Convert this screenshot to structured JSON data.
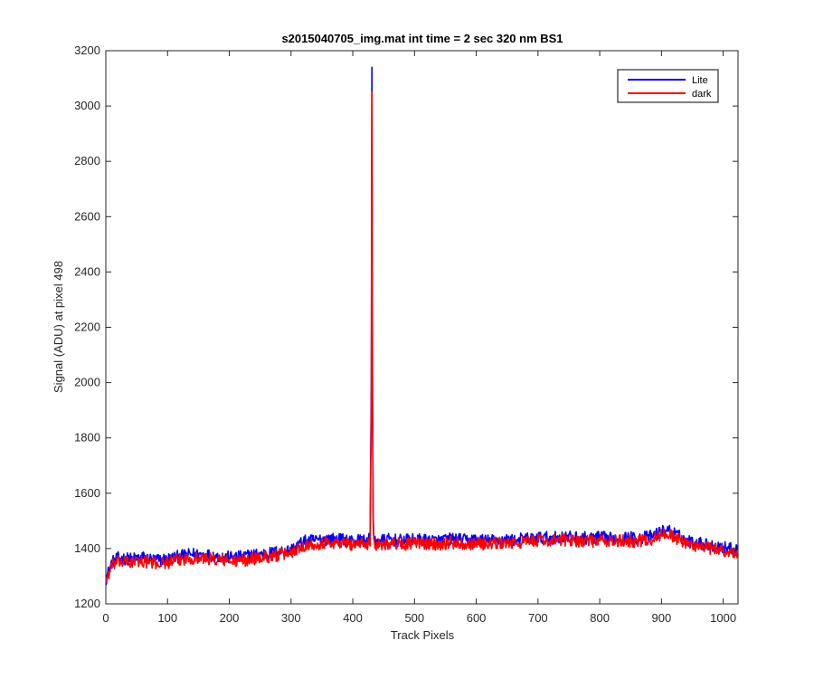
{
  "chart_data": {
    "type": "line",
    "title": "s2015040705_img.mat int time = 2 sec  320 nm BS1",
    "xlabel": "Track Pixels",
    "ylabel": "Signal (ADU) at pixel 498",
    "xlim": [
      0,
      1024
    ],
    "ylim": [
      1200,
      3200
    ],
    "xticks": [
      0,
      100,
      200,
      300,
      400,
      500,
      600,
      700,
      800,
      900,
      1000
    ],
    "yticks": [
      1200,
      1400,
      1600,
      1800,
      2000,
      2200,
      2400,
      2600,
      2800,
      3000,
      3200
    ],
    "grid": false,
    "legend_position": "top-right",
    "series": [
      {
        "name": "Lite",
        "color": "#0000ff",
        "x": [
          0,
          5,
          10,
          20,
          40,
          60,
          80,
          100,
          120,
          140,
          160,
          180,
          200,
          220,
          240,
          260,
          280,
          300,
          310,
          320,
          340,
          360,
          380,
          400,
          410,
          420,
          428,
          430,
          431,
          432,
          433,
          434,
          436,
          440,
          450,
          460,
          480,
          500,
          520,
          540,
          560,
          580,
          600,
          620,
          640,
          660,
          680,
          700,
          720,
          740,
          760,
          780,
          800,
          820,
          840,
          860,
          880,
          900,
          910,
          920,
          940,
          960,
          980,
          1000,
          1010,
          1024
        ],
        "y": [
          1290,
          1320,
          1350,
          1365,
          1362,
          1368,
          1358,
          1362,
          1372,
          1380,
          1378,
          1372,
          1368,
          1370,
          1378,
          1382,
          1388,
          1395,
          1410,
          1425,
          1430,
          1435,
          1432,
          1428,
          1430,
          1428,
          1432,
          1990,
          3140,
          1960,
          1520,
          1450,
          1425,
          1428,
          1430,
          1432,
          1428,
          1432,
          1430,
          1428,
          1435,
          1430,
          1432,
          1428,
          1432,
          1430,
          1435,
          1440,
          1438,
          1442,
          1440,
          1438,
          1440,
          1436,
          1440,
          1438,
          1442,
          1460,
          1470,
          1455,
          1430,
          1420,
          1412,
          1405,
          1400,
          1398
        ]
      },
      {
        "name": "dark",
        "color": "#ff0000",
        "x": [
          0,
          5,
          10,
          20,
          40,
          60,
          80,
          100,
          120,
          140,
          160,
          180,
          200,
          220,
          240,
          260,
          280,
          300,
          310,
          320,
          340,
          360,
          380,
          400,
          410,
          420,
          428,
          430,
          431,
          432,
          433,
          434,
          436,
          440,
          450,
          460,
          480,
          500,
          520,
          540,
          560,
          580,
          600,
          620,
          640,
          660,
          680,
          700,
          720,
          740,
          760,
          780,
          800,
          820,
          840,
          860,
          880,
          900,
          910,
          920,
          940,
          960,
          980,
          1000,
          1010,
          1024
        ],
        "y": [
          1285,
          1310,
          1340,
          1352,
          1350,
          1355,
          1346,
          1350,
          1360,
          1366,
          1364,
          1360,
          1355,
          1356,
          1364,
          1370,
          1376,
          1385,
          1398,
          1412,
          1418,
          1422,
          1420,
          1416,
          1418,
          1416,
          1420,
          1900,
          3050,
          1920,
          1500,
          1438,
          1412,
          1416,
          1418,
          1420,
          1415,
          1420,
          1418,
          1416,
          1422,
          1418,
          1420,
          1416,
          1420,
          1418,
          1424,
          1430,
          1427,
          1432,
          1430,
          1426,
          1428,
          1424,
          1428,
          1426,
          1430,
          1448,
          1458,
          1442,
          1418,
          1408,
          1400,
          1392,
          1388,
          1385
        ]
      }
    ]
  }
}
